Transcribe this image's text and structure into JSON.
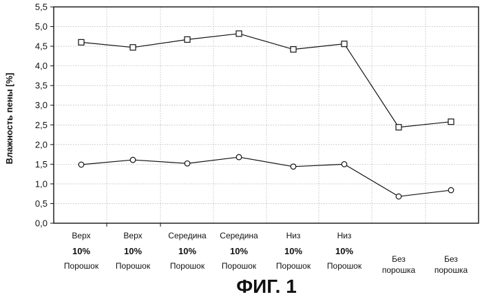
{
  "chart_data": {
    "type": "line",
    "title": "ФИГ. 1",
    "ylabel": "Влажность пены [%]",
    "xlabel": "",
    "ylim": [
      0,
      5.5
    ],
    "yticks": [
      "0,0",
      "0,5",
      "1,0",
      "1,5",
      "2,0",
      "2,5",
      "3,0",
      "3,5",
      "4,0",
      "4,5",
      "5,0",
      "5,5"
    ],
    "grid": true,
    "categories": [
      {
        "line1": "Верх",
        "line2": "10%",
        "line3": "Порошок"
      },
      {
        "line1": "Верх",
        "line2": "10%",
        "line3": "Порошок"
      },
      {
        "line1": "Середина",
        "line2": "10%",
        "line3": "Порошок"
      },
      {
        "line1": "Середина",
        "line2": "10%",
        "line3": "Порошок"
      },
      {
        "line1": "Низ",
        "line2": "10%",
        "line3": "Порошок"
      },
      {
        "line1": "Низ",
        "line2": "10%",
        "line3": "Порошок"
      },
      {
        "line1": "Без",
        "line2": "порошка"
      },
      {
        "line1": "Без",
        "line2": "порошка"
      }
    ],
    "series": [
      {
        "name": "square-markers",
        "marker": "square",
        "values": [
          4.6,
          4.47,
          4.67,
          4.82,
          4.42,
          4.56,
          2.44,
          2.58
        ]
      },
      {
        "name": "circle-markers",
        "marker": "circle",
        "values": [
          1.49,
          1.61,
          1.52,
          1.68,
          1.44,
          1.5,
          0.68,
          0.84
        ]
      }
    ]
  }
}
